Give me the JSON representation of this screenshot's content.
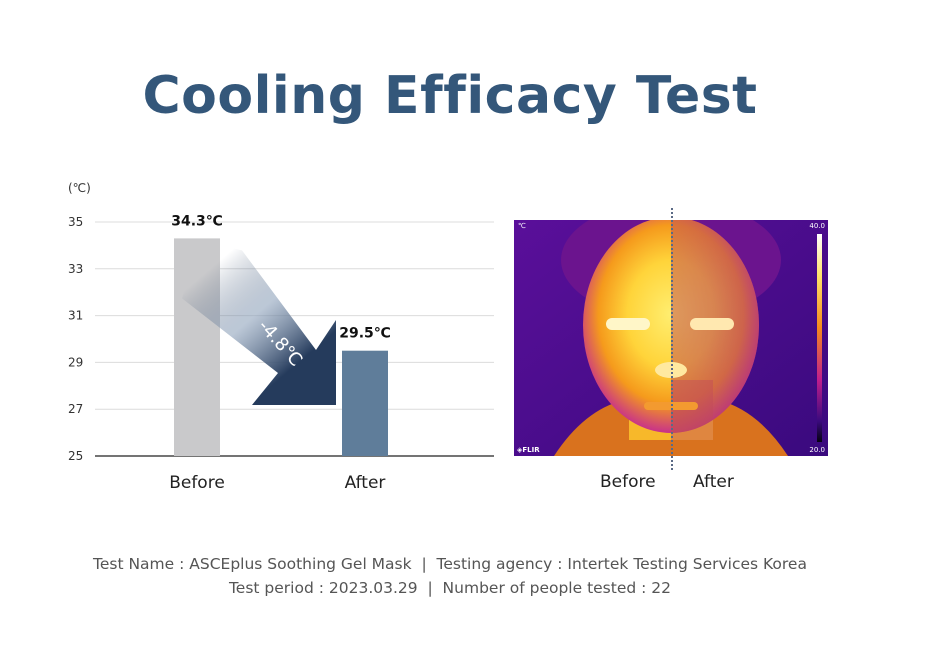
{
  "title": "Cooling Efficacy Test",
  "chart_data": {
    "type": "bar",
    "unit_label": "(℃)",
    "categories": [
      "Before",
      "After"
    ],
    "values": [
      34.3,
      29.5
    ],
    "value_labels": [
      "34.3℃",
      "29.5℃"
    ],
    "ylim": [
      25,
      35
    ],
    "yticks": [
      25,
      27,
      29,
      31,
      33,
      35
    ],
    "grid": true,
    "colors": [
      "#c9c9cb",
      "#5f7d9a"
    ],
    "annotation": "-4.8℃",
    "arrow_color": "#253b5c"
  },
  "thermal_image": {
    "unit": "℃",
    "scale_max": "40.0",
    "scale_min": "20.0",
    "brand": "FLIR",
    "left_label": "Before",
    "right_label": "After"
  },
  "footer": {
    "line1": "Test Name : ASCEplus Soothing Gel Mask  |  Testing agency : Intertek Testing Services Korea",
    "line2": "Test period : 2023.03.29  |  Number of people tested : 22"
  }
}
